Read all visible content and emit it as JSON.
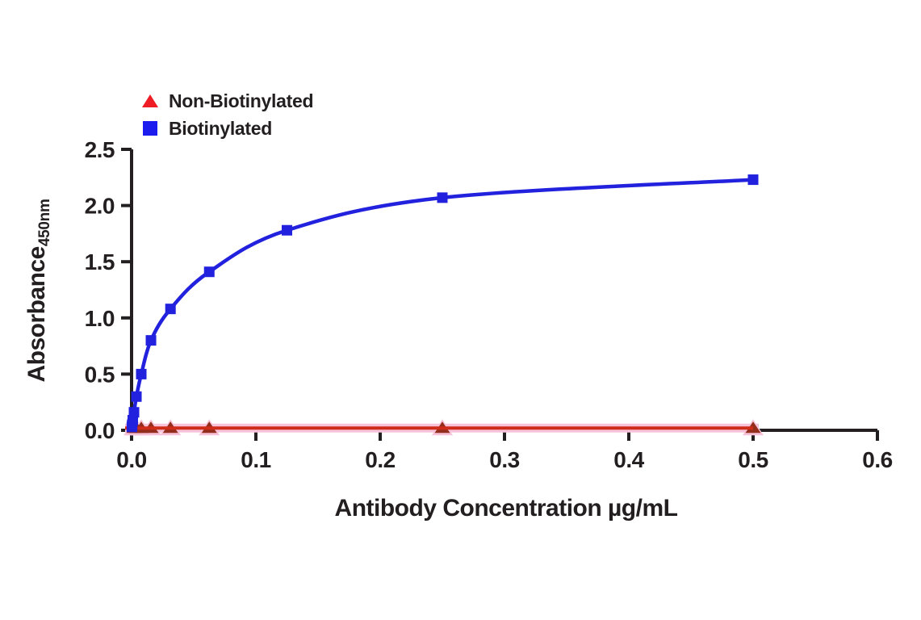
{
  "figure": {
    "background": "#FFFFFF",
    "axis_color": "#231F20",
    "legend": {
      "position": "top-left",
      "items": [
        {
          "label": "Non-Biotinylated",
          "marker": "triangle",
          "color": "#EE1C24"
        },
        {
          "label": "Biotinylated",
          "marker": "square",
          "color": "#1C1CEE"
        }
      ]
    }
  },
  "chart_data": {
    "type": "line",
    "title": "",
    "xlabel": "Antibody Concentration µg/mL",
    "ylabel": "Absorbance",
    "ylabel_subscript": "450nm",
    "xlim": [
      0,
      0.6
    ],
    "ylim": [
      0,
      2.5
    ],
    "grid": false,
    "legend_position": "top-left",
    "x_ticks": [
      0.0,
      0.1,
      0.2,
      0.3,
      0.4,
      0.5,
      0.6
    ],
    "x_tick_labels": [
      "0.0",
      "0.1",
      "0.2",
      "0.3",
      "0.4",
      "0.5",
      "0.6"
    ],
    "y_ticks": [
      0.0,
      0.5,
      1.0,
      1.5,
      2.0,
      2.5
    ],
    "y_tick_labels": [
      "0.0",
      "0.5",
      "1.0",
      "1.5",
      "2.0",
      "2.5"
    ],
    "series": [
      {
        "name": "Non-Biotinylated",
        "marker": "triangle",
        "line_color": "#D02A18",
        "marker_color": "#942E1C",
        "halo_color": "#F7C3DA",
        "x": [
          0.002,
          0.0039,
          0.0078,
          0.0156,
          0.0313,
          0.0625,
          0.25,
          0.5
        ],
        "y": [
          0.02,
          0.02,
          0.02,
          0.02,
          0.02,
          0.02,
          0.02,
          0.02
        ]
      },
      {
        "name": "Biotinylated",
        "marker": "square",
        "line_color": "#2121DE",
        "marker_color": "#2121DE",
        "x": [
          0.00024,
          0.00049,
          0.00098,
          0.00195,
          0.0039,
          0.0078,
          0.0156,
          0.0313,
          0.0625,
          0.125,
          0.25,
          0.5
        ],
        "y": [
          0.03,
          0.05,
          0.09,
          0.16,
          0.3,
          0.5,
          0.8,
          1.08,
          1.41,
          1.78,
          2.07,
          2.23
        ]
      }
    ]
  }
}
